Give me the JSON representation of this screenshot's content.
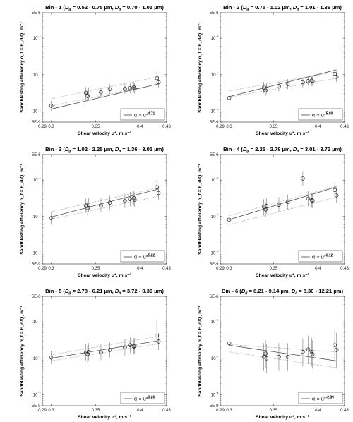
{
  "chart_data": [
    {
      "type": "scatter",
      "title": "Bin - 1 (D_g = 0.52 - 0.75 µm, D_a = 0.70 - 1.01 µm)",
      "title_parts": {
        "prefix": "Bin - 1 (",
        "dg": "0.52 - 0.75",
        "da": "0.70 - 1.01",
        "unit": "µm"
      },
      "ylabel": "Sandblasting efficiency α_f = F_d/Q, m⁻¹",
      "xlabel": "Shear velocity u*, m s⁻¹",
      "xlim": [
        0.29,
        0.43
      ],
      "ylim": [
        5e-09,
        5e-06
      ],
      "yscale": "log",
      "xticks": [
        "0.29",
        "0.3",
        "0.35",
        "0.4",
        "0.43"
      ],
      "yticks": [
        "5E-9",
        "10⁻⁸",
        "10⁻⁷",
        "10⁻⁶",
        "5E-6"
      ],
      "legend": {
        "label": "α ∝ u*",
        "exponent": "4.71",
        "position": "bottom-right"
      },
      "points": [
        {
          "x": 0.3,
          "y": 1.4e-08,
          "lo": 1e-08,
          "hi": 1.9e-08
        },
        {
          "x": 0.339,
          "y": 3.2e-08,
          "lo": 2.1e-08,
          "hi": 4.6e-08
        },
        {
          "x": 0.341,
          "y": 2.6e-08,
          "lo": 1.8e-08,
          "hi": 3.9e-08
        },
        {
          "x": 0.342,
          "y": 3e-08,
          "lo": 2e-08,
          "hi": 4.5e-08
        },
        {
          "x": 0.356,
          "y": 3.3e-08,
          "lo": 2.4e-08,
          "hi": 4.5e-08
        },
        {
          "x": 0.366,
          "y": 4e-08,
          "lo": 2.9e-08,
          "hi": 5.5e-08
        },
        {
          "x": 0.383,
          "y": 4.1e-08,
          "lo": 3e-08,
          "hi": 5.6e-08
        },
        {
          "x": 0.389,
          "y": 4.3e-08,
          "lo": 3.1e-08,
          "hi": 5.8e-08
        },
        {
          "x": 0.393,
          "y": 4.5e-08,
          "lo": 3.2e-08,
          "hi": 6.2e-08
        },
        {
          "x": 0.394,
          "y": 4.2e-08,
          "lo": 3e-08,
          "hi": 5.8e-08
        },
        {
          "x": 0.419,
          "y": 8e-08,
          "lo": 5.5e-08,
          "hi": 1.2e-07
        },
        {
          "x": 0.421,
          "y": 6.2e-08,
          "lo": 4.4e-08,
          "hi": 8.8e-08
        }
      ],
      "fit": {
        "a": 3.3e-06,
        "n": 4.71
      },
      "ci": {
        "y_low_left": 1.4e-08,
        "y_high_left": 2.2e-08,
        "y_low_right": 5.5e-08,
        "y_high_right": 8.8e-08
      }
    },
    {
      "type": "scatter",
      "title": "Bin - 2 (D_g = 0.75 - 1.02 µm, D_a = 1.01 - 1.36 µm)",
      "title_parts": {
        "prefix": "Bin - 2 (",
        "dg": "0.75 - 1.02",
        "da": "1.01 - 1.36",
        "unit": "µm"
      },
      "ylabel": "Sandblasting efficiency α_f = F_d/Q, m⁻¹",
      "xlabel": "Shear velocity u*, m s⁻¹",
      "xlim": [
        0.29,
        0.43
      ],
      "ylim": [
        5e-09,
        5e-06
      ],
      "yscale": "log",
      "xticks": [
        "0.29",
        "0.3",
        "0.35",
        "0.4",
        "0.43"
      ],
      "yticks": [
        "5E-9",
        "10⁻⁸",
        "10⁻⁷",
        "10⁻⁶",
        "5E-6"
      ],
      "legend": {
        "label": "α ∝ u*",
        "exponent": "5.00",
        "position": "bottom-right"
      },
      "points": [
        {
          "x": 0.3,
          "y": 2.3e-08,
          "lo": 1.7e-08,
          "hi": 3.2e-08
        },
        {
          "x": 0.339,
          "y": 4.4e-08,
          "lo": 3.1e-08,
          "hi": 6.3e-08
        },
        {
          "x": 0.341,
          "y": 3.7e-08,
          "lo": 2.6e-08,
          "hi": 5.2e-08
        },
        {
          "x": 0.342,
          "y": 4.2e-08,
          "lo": 3e-08,
          "hi": 5.9e-08
        },
        {
          "x": 0.356,
          "y": 4.8e-08,
          "lo": 3.5e-08,
          "hi": 6.6e-08
        },
        {
          "x": 0.366,
          "y": 5.5e-08,
          "lo": 4e-08,
          "hi": 7.6e-08
        },
        {
          "x": 0.383,
          "y": 6.2e-08,
          "lo": 4.5e-08,
          "hi": 8.5e-08
        },
        {
          "x": 0.389,
          "y": 6.7e-08,
          "lo": 4.9e-08,
          "hi": 9.2e-08
        },
        {
          "x": 0.393,
          "y": 6.9e-08,
          "lo": 5e-08,
          "hi": 9.5e-08
        },
        {
          "x": 0.394,
          "y": 6.6e-08,
          "lo": 4.8e-08,
          "hi": 9.1e-08
        },
        {
          "x": 0.419,
          "y": 1.05e-07,
          "lo": 7.6e-08,
          "hi": 1.45e-07
        },
        {
          "x": 0.421,
          "y": 8.7e-08,
          "lo": 6.3e-08,
          "hi": 1.2e-07
        }
      ],
      "fit": {
        "a": 1.03e-05,
        "n": 5.0
      },
      "ci": {
        "y_low_left": 2.4e-08,
        "y_high_left": 3.6e-08,
        "y_low_right": 8e-08,
        "y_high_right": 1.2e-07
      }
    },
    {
      "type": "scatter",
      "title": "Bin - 3 (D_g = 1.02 - 2.25 µm, D_a = 1.36 - 3.01 µm)",
      "title_parts": {
        "prefix": "Bin - 3 (",
        "dg": "1.02 - 2.25",
        "da": "1.36 - 3.01",
        "unit": "µm"
      },
      "ylabel": "Sandblasting efficiency α_f = F_d/Q, m⁻¹",
      "xlabel": "Shear velocity u*, m s⁻¹",
      "xlim": [
        0.29,
        0.43
      ],
      "ylim": [
        5e-09,
        5e-06
      ],
      "yscale": "log",
      "xticks": [
        "0.29",
        "0.3",
        "0.35",
        "0.4",
        "0.43"
      ],
      "yticks": [
        "5E-9",
        "10⁻⁸",
        "10⁻⁷",
        "10⁻⁶",
        "5E-6"
      ],
      "legend": {
        "label": "α ∝ u*",
        "exponent": "5.22",
        "position": "bottom-right"
      },
      "points": [
        {
          "x": 0.3,
          "y": 9e-08,
          "lo": 6e-08,
          "hi": 1.35e-07
        },
        {
          "x": 0.339,
          "y": 2e-07,
          "lo": 1.25e-07,
          "hi": 3.1e-07
        },
        {
          "x": 0.341,
          "y": 1.7e-07,
          "lo": 1.05e-07,
          "hi": 2.6e-07
        },
        {
          "x": 0.342,
          "y": 2.1e-07,
          "lo": 1.3e-07,
          "hi": 3.3e-07
        },
        {
          "x": 0.356,
          "y": 2e-07,
          "lo": 1.3e-07,
          "hi": 3.1e-07
        },
        {
          "x": 0.366,
          "y": 2.4e-07,
          "lo": 1.5e-07,
          "hi": 3.7e-07
        },
        {
          "x": 0.383,
          "y": 2.7e-07,
          "lo": 1.7e-07,
          "hi": 4.2e-07
        },
        {
          "x": 0.389,
          "y": 3e-07,
          "lo": 1.9e-07,
          "hi": 4.7e-07
        },
        {
          "x": 0.393,
          "y": 3.2e-07,
          "lo": 2e-07,
          "hi": 5e-07
        },
        {
          "x": 0.394,
          "y": 2.9e-07,
          "lo": 1.8e-07,
          "hi": 4.6e-07
        },
        {
          "x": 0.419,
          "y": 6.4e-07,
          "lo": 4e-07,
          "hi": 1e-06
        },
        {
          "x": 0.421,
          "y": 4.4e-07,
          "lo": 2.8e-07,
          "hi": 7e-07
        }
      ],
      "fit": {
        "a": 5.2e-05,
        "n": 5.22
      },
      "ci": {
        "y_low_left": 8.5e-08,
        "y_high_left": 1.35e-07,
        "y_low_right": 3.6e-07,
        "y_high_right": 6.2e-07
      }
    },
    {
      "type": "scatter",
      "title": "Bin - 4 (D_g = 2.25 - 2.78 µm, D_a = 3.01 - 3.72 µm)",
      "title_parts": {
        "prefix": "Bin - 4 (",
        "dg": "2.25 - 2.78",
        "da": "3.01 - 3.72",
        "unit": "µm"
      },
      "ylabel": "Sandblasting efficiency α_f = F_d/Q, m⁻¹",
      "xlabel": "Shear velocity u*, m s⁻¹",
      "xlim": [
        0.29,
        0.43
      ],
      "ylim": [
        5e-09,
        5e-06
      ],
      "yscale": "log",
      "xticks": [
        "0.29",
        "0.3",
        "0.35",
        "0.4",
        "0.43"
      ],
      "yticks": [
        "5E-9",
        "10⁻⁸",
        "10⁻⁷",
        "10⁻⁶",
        "5E-6"
      ],
      "legend": {
        "label": "α ∝ u*",
        "exponent": "6.12",
        "position": "bottom-right"
      },
      "points": [
        {
          "x": 0.3,
          "y": 8.2e-08,
          "lo": 5.5e-08,
          "hi": 1.25e-07
        },
        {
          "x": 0.339,
          "y": 1.85e-07,
          "lo": 1.1e-07,
          "hi": 3e-07
        },
        {
          "x": 0.341,
          "y": 1.55e-07,
          "lo": 9.5e-08,
          "hi": 2.5e-07
        },
        {
          "x": 0.342,
          "y": 1.95e-07,
          "lo": 1.2e-07,
          "hi": 3.2e-07
        },
        {
          "x": 0.356,
          "y": 2.1e-07,
          "lo": 1.3e-07,
          "hi": 3.4e-07
        },
        {
          "x": 0.366,
          "y": 2.5e-07,
          "lo": 1.55e-07,
          "hi": 4e-07
        },
        {
          "x": 0.383,
          "y": 1.1e-06,
          "lo": 7e-07,
          "hi": 1.7e-06
        },
        {
          "x": 0.389,
          "y": 3.1e-07,
          "lo": 1.9e-07,
          "hi": 5e-07
        },
        {
          "x": 0.393,
          "y": 2.8e-07,
          "lo": 1.75e-07,
          "hi": 4.5e-07
        },
        {
          "x": 0.394,
          "y": 2.7e-07,
          "lo": 1.7e-07,
          "hi": 4.3e-07
        },
        {
          "x": 0.419,
          "y": 5.3e-07,
          "lo": 3.3e-07,
          "hi": 8.5e-07
        },
        {
          "x": 0.421,
          "y": 3.8e-07,
          "lo": 2.4e-07,
          "hi": 6e-07
        }
      ],
      "fit": {
        "a": 0.00013,
        "n": 6.12
      },
      "ci": {
        "y_low_left": 6e-08,
        "y_high_left": 1.05e-07,
        "y_low_right": 3.4e-07,
        "y_high_right": 6.8e-07
      }
    },
    {
      "type": "scatter",
      "title": "Bin - 5 (D_g = 2.78 - 6.21 µm, D_a = 3.72 - 8.30 µm)",
      "title_parts": {
        "prefix": "Bin - 5 (",
        "dg": "2.78 - 6.21",
        "da": "3.72 - 8.30",
        "unit": "µm"
      },
      "ylabel": "Sandblasting efficiency α_f = F_d/Q, m⁻¹",
      "xlabel": "Shear velocity u*, m s⁻¹",
      "xlim": [
        0.29,
        0.43
      ],
      "ylim": [
        5e-09,
        5e-06
      ],
      "yscale": "log",
      "xticks": [
        "0.29",
        "0.3",
        "0.35",
        "0.4",
        "0.43"
      ],
      "yticks": [
        "5E-9",
        "10⁻⁸",
        "10⁻⁷",
        "10⁻⁶",
        "5E-6"
      ],
      "legend": {
        "label": "α ∝ u*",
        "exponent": "3.26",
        "position": "bottom-right"
      },
      "points": [
        {
          "x": 0.3,
          "y": 1.05e-07,
          "lo": 7e-08,
          "hi": 1.6e-07
        },
        {
          "x": 0.339,
          "y": 1.45e-07,
          "lo": 8.5e-08,
          "hi": 2.5e-07
        },
        {
          "x": 0.341,
          "y": 1.3e-07,
          "lo": 7.5e-08,
          "hi": 2.3e-07
        },
        {
          "x": 0.342,
          "y": 1.5e-07,
          "lo": 8.8e-08,
          "hi": 2.6e-07
        },
        {
          "x": 0.356,
          "y": 1.45e-07,
          "lo": 9e-08,
          "hi": 2.4e-07
        },
        {
          "x": 0.366,
          "y": 1.7e-07,
          "lo": 1.05e-07,
          "hi": 2.8e-07
        },
        {
          "x": 0.383,
          "y": 2e-07,
          "lo": 1.2e-07,
          "hi": 3.3e-07
        },
        {
          "x": 0.389,
          "y": 2.3e-07,
          "lo": 1.4e-07,
          "hi": 3.8e-07
        },
        {
          "x": 0.393,
          "y": 2.1e-07,
          "lo": 1.3e-07,
          "hi": 3.5e-07
        },
        {
          "x": 0.394,
          "y": 2.2e-07,
          "lo": 1.35e-07,
          "hi": 3.6e-07
        },
        {
          "x": 0.419,
          "y": 4.2e-07,
          "lo": 2.3e-07,
          "hi": 1.1e-06
        },
        {
          "x": 0.421,
          "y": 2.9e-07,
          "lo": 1.7e-07,
          "hi": 5e-07
        }
      ],
      "fit": {
        "a": 5.1e-06,
        "n": 3.26
      },
      "ci": {
        "y_low_left": 8.5e-08,
        "y_high_left": 1.25e-07,
        "y_low_right": 2.5e-07,
        "y_high_right": 4e-07
      }
    },
    {
      "type": "scatter",
      "title": "Bin - 6 (D_g = 6.21 - 9.14 µm, D_a = 8.30 - 12.21 µm)",
      "title_parts": {
        "prefix": "Bin - 6 (",
        "dg": "6.21 - 9.14",
        "da": "8.30 - 12.21",
        "unit": "µm"
      },
      "ylabel": "Sandblasting efficiency α_f = F_d/Q, m⁻¹",
      "xlabel": "Shear velocity u*, m s⁻¹",
      "xlim": [
        0.29,
        0.43
      ],
      "ylim": [
        5e-09,
        5e-06
      ],
      "yscale": "log",
      "xticks": [
        "0.29",
        "0.3",
        "0.35",
        "0.4",
        "0.43"
      ],
      "yticks": [
        "5E-9",
        "10⁻⁸",
        "10⁻⁷",
        "10⁻⁶",
        "5E-6"
      ],
      "legend": {
        "label": "α ∝ u*",
        "exponent": "-2.89",
        "position": "bottom-right"
      },
      "points": [
        {
          "x": 0.3,
          "y": 2.6e-07,
          "lo": 1.7e-07,
          "hi": 4e-07
        },
        {
          "x": 0.339,
          "y": 1.1e-07,
          "lo": 4.5e-08,
          "hi": 2.6e-07
        },
        {
          "x": 0.341,
          "y": 1.35e-07,
          "lo": 5.5e-08,
          "hi": 3.2e-07
        },
        {
          "x": 0.342,
          "y": 1e-07,
          "lo": 4e-08,
          "hi": 2.4e-07
        },
        {
          "x": 0.356,
          "y": 1.1e-07,
          "lo": 4.5e-08,
          "hi": 2.6e-07
        },
        {
          "x": 0.366,
          "y": 1.1e-07,
          "lo": 4.5e-08,
          "hi": 2.6e-07
        },
        {
          "x": 0.383,
          "y": 1.5e-07,
          "lo": 6e-08,
          "hi": 3.5e-07
        },
        {
          "x": 0.389,
          "y": 1.75e-07,
          "lo": 7e-08,
          "hi": 4.2e-07
        },
        {
          "x": 0.393,
          "y": 1.5e-07,
          "lo": 6e-08,
          "hi": 3.6e-07
        },
        {
          "x": 0.394,
          "y": 1.3e-07,
          "lo": 5.2e-08,
          "hi": 3.1e-07
        },
        {
          "x": 0.419,
          "y": 2.3e-07,
          "lo": 8e-08,
          "hi": 6e-07
        },
        {
          "x": 0.421,
          "y": 1.7e-07,
          "lo": 5.5e-08,
          "hi": 5e-07
        }
      ],
      "fit": {
        "a": 7e-09,
        "n": -2.89
      },
      "ci": {
        "y_low_left": 1.5e-07,
        "y_high_left": 2.4e-07,
        "y_low_right": 5.5e-08,
        "y_high_right": 1.5e-07
      }
    }
  ]
}
